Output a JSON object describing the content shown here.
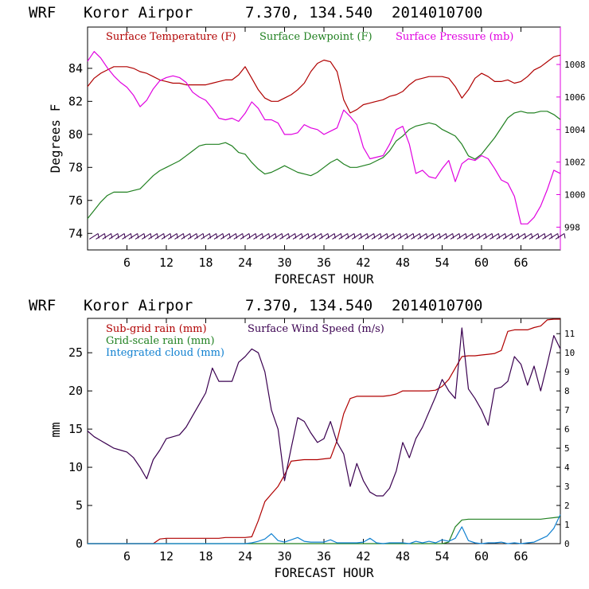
{
  "header": {
    "model": "WRF",
    "station": "Koror Airpor",
    "coords": "7.370, 134.540",
    "init_time": "2014010700"
  },
  "colors": {
    "temperature": "#b00000",
    "dewpoint": "#208020",
    "pressure": "#e000e0",
    "subgrid_rain": "#b00000",
    "grid_rain": "#208020",
    "cloud": "#1080d0",
    "wind_speed": "#3a0050",
    "wind_barbs": "#3a0050"
  },
  "chart_data": [
    {
      "type": "line",
      "title": "WRF   Koror Airpor   7.370, 134.540  2014010700",
      "xlabel": "FORECAST HOUR",
      "ylabel": "Degrees F",
      "y2label": "",
      "xlim": [
        0,
        72
      ],
      "ylim": [
        73.0,
        86.5
      ],
      "y2lim": [
        996.6,
        1010.3
      ],
      "xticks": [
        6,
        12,
        18,
        24,
        30,
        36,
        42,
        48,
        54,
        60,
        66
      ],
      "yticks": [
        74,
        76,
        78,
        80,
        82,
        84
      ],
      "y2ticks": [
        998,
        1000,
        1002,
        1004,
        1006,
        1008
      ],
      "x": [
        0,
        1,
        2,
        3,
        4,
        5,
        6,
        7,
        8,
        9,
        10,
        11,
        12,
        13,
        14,
        15,
        16,
        17,
        18,
        19,
        20,
        21,
        22,
        23,
        24,
        25,
        26,
        27,
        28,
        29,
        30,
        31,
        32,
        33,
        34,
        35,
        36,
        37,
        38,
        39,
        40,
        41,
        42,
        43,
        44,
        45,
        46,
        47,
        48,
        49,
        50,
        51,
        52,
        53,
        54,
        55,
        56,
        57,
        58,
        59,
        60,
        61,
        62,
        63,
        64,
        65,
        66,
        67,
        68,
        69,
        70,
        71,
        72
      ],
      "series": [
        {
          "name": "Surface Temperature (F)",
          "axis": "left",
          "values": [
            82.9,
            83.4,
            83.7,
            83.9,
            84.1,
            84.1,
            84.1,
            84.0,
            83.8,
            83.7,
            83.5,
            83.3,
            83.2,
            83.1,
            83.1,
            83.0,
            83.0,
            83.0,
            83.0,
            83.1,
            83.2,
            83.3,
            83.3,
            83.6,
            84.1,
            83.4,
            82.7,
            82.2,
            82.0,
            82.0,
            82.2,
            82.4,
            82.7,
            83.1,
            83.8,
            84.3,
            84.5,
            84.4,
            83.8,
            82.1,
            81.3,
            81.5,
            81.8,
            81.9,
            82.0,
            82.1,
            82.3,
            82.4,
            82.6,
            83.0,
            83.3,
            83.4,
            83.5,
            83.5,
            83.5,
            83.4,
            82.9,
            82.2,
            82.7,
            83.4,
            83.7,
            83.5,
            83.2,
            83.2,
            83.3,
            83.1,
            83.2,
            83.5,
            83.9,
            84.1,
            84.4,
            84.7,
            84.8
          ]
        },
        {
          "name": "Surface Dewpoint (F)",
          "axis": "left",
          "values": [
            74.9,
            75.4,
            75.9,
            76.3,
            76.5,
            76.5,
            76.5,
            76.6,
            76.7,
            77.1,
            77.5,
            77.8,
            78.0,
            78.2,
            78.4,
            78.7,
            79.0,
            79.3,
            79.4,
            79.4,
            79.4,
            79.5,
            79.3,
            78.9,
            78.8,
            78.3,
            77.9,
            77.6,
            77.7,
            77.9,
            78.1,
            77.9,
            77.7,
            77.6,
            77.5,
            77.7,
            78.0,
            78.3,
            78.5,
            78.2,
            78.0,
            78.0,
            78.1,
            78.2,
            78.4,
            78.6,
            79.0,
            79.6,
            79.9,
            80.3,
            80.5,
            80.6,
            80.7,
            80.6,
            80.3,
            80.1,
            79.9,
            79.4,
            78.7,
            78.5,
            78.8,
            79.3,
            79.8,
            80.4,
            81.0,
            81.3,
            81.4,
            81.3,
            81.3,
            81.4,
            81.4,
            81.2,
            80.9
          ]
        },
        {
          "name": "Surface Pressure (mb)",
          "axis": "right",
          "values": [
            1008.2,
            1008.8,
            1008.4,
            1007.8,
            1007.3,
            1006.9,
            1006.6,
            1006.1,
            1005.4,
            1005.8,
            1006.5,
            1007.0,
            1007.2,
            1007.3,
            1007.2,
            1006.9,
            1006.3,
            1006.0,
            1005.8,
            1005.3,
            1004.7,
            1004.6,
            1004.7,
            1004.5,
            1005.0,
            1005.7,
            1005.3,
            1004.6,
            1004.6,
            1004.4,
            1003.7,
            1003.7,
            1003.8,
            1004.3,
            1004.1,
            1004.0,
            1003.7,
            1003.9,
            1004.1,
            1005.2,
            1004.8,
            1004.3,
            1002.9,
            1002.2,
            1002.3,
            1002.4,
            1003.1,
            1004.0,
            1004.2,
            1003.1,
            1001.3,
            1001.5,
            1001.1,
            1001.0,
            1001.6,
            1002.1,
            1000.8,
            1001.9,
            1002.2,
            1002.1,
            1002.4,
            1002.2,
            1001.6,
            1000.9,
            1000.7,
            999.9,
            998.2,
            998.2,
            998.6,
            999.3,
            1000.3,
            1001.5,
            1001.3
          ]
        }
      ],
      "wind_barbs": {
        "shown": true,
        "count": 72,
        "y_level": 73.8
      }
    },
    {
      "type": "line",
      "title": "WRF   Koror Airpor   7.370, 134.540  2014010700",
      "xlabel": "FORECAST HOUR",
      "ylabel": "mm",
      "xlim": [
        0,
        72
      ],
      "ylim": [
        0,
        29.5
      ],
      "y2lim": [
        0,
        11.8
      ],
      "xticks": [
        6,
        12,
        18,
        24,
        30,
        36,
        42,
        48,
        54,
        60,
        66
      ],
      "yticks": [
        0,
        5,
        10,
        15,
        20,
        25
      ],
      "y2ticks": [
        0,
        1,
        2,
        3,
        4,
        5,
        6,
        7,
        8,
        9,
        10,
        11
      ],
      "x": [
        0,
        1,
        2,
        3,
        4,
        5,
        6,
        7,
        8,
        9,
        10,
        11,
        12,
        13,
        14,
        15,
        16,
        17,
        18,
        19,
        20,
        21,
        22,
        23,
        24,
        25,
        26,
        27,
        28,
        29,
        30,
        31,
        32,
        33,
        34,
        35,
        36,
        37,
        38,
        39,
        40,
        41,
        42,
        43,
        44,
        45,
        46,
        47,
        48,
        49,
        50,
        51,
        52,
        53,
        54,
        55,
        56,
        57,
        58,
        59,
        60,
        61,
        62,
        63,
        64,
        65,
        66,
        67,
        68,
        69,
        70,
        71,
        72
      ],
      "series": [
        {
          "name": "Sub-grid rain (mm)",
          "axis": "left",
          "values": [
            0,
            0,
            0,
            0,
            0,
            0,
            0,
            0,
            0,
            0,
            0,
            0.6,
            0.7,
            0.7,
            0.7,
            0.7,
            0.7,
            0.7,
            0.7,
            0.7,
            0.7,
            0.8,
            0.8,
            0.8,
            0.8,
            0.9,
            3.0,
            5.5,
            6.5,
            7.5,
            9.0,
            10.8,
            10.9,
            11.0,
            11.0,
            11.0,
            11.1,
            11.2,
            13.5,
            17.0,
            19.0,
            19.3,
            19.3,
            19.3,
            19.3,
            19.3,
            19.4,
            19.6,
            20.0,
            20.0,
            20.0,
            20.0,
            20.0,
            20.1,
            20.6,
            21.5,
            23.0,
            24.5,
            24.6,
            24.6,
            24.7,
            24.8,
            24.9,
            25.3,
            27.8,
            28.0,
            28.0,
            28.0,
            28.3,
            28.5,
            29.3,
            29.4,
            29.4
          ]
        },
        {
          "name": "Grid-scale rain (mm)",
          "axis": "left",
          "values": [
            0,
            0,
            0,
            0,
            0,
            0,
            0,
            0,
            0,
            0,
            0,
            0,
            0,
            0,
            0,
            0,
            0,
            0,
            0,
            0,
            0,
            0,
            0,
            0,
            0,
            0,
            0,
            0,
            0,
            0,
            0,
            0,
            0,
            0,
            0,
            0,
            0,
            0,
            0,
            0,
            0,
            0,
            0,
            0,
            0,
            0,
            0,
            0,
            0,
            0,
            0,
            0,
            0,
            0,
            0,
            0.2,
            2.2,
            3.1,
            3.2,
            3.2,
            3.2,
            3.2,
            3.2,
            3.2,
            3.2,
            3.2,
            3.2,
            3.2,
            3.2,
            3.2,
            3.3,
            3.4,
            3.5
          ]
        },
        {
          "name": "Integrated cloud (mm)",
          "axis": "left",
          "values": [
            0,
            0,
            0,
            0,
            0,
            0,
            0,
            0,
            0,
            0,
            0,
            0,
            0,
            0,
            0,
            0,
            0,
            0,
            0,
            0,
            0,
            0,
            0,
            0,
            0,
            0.1,
            0.3,
            0.6,
            1.3,
            0.4,
            0.2,
            0.5,
            0.8,
            0.3,
            0.2,
            0.2,
            0.2,
            0.5,
            0.1,
            0.1,
            0.1,
            0.1,
            0.2,
            0.7,
            0.1,
            0.0,
            0.1,
            0.1,
            0.1,
            0.0,
            0.3,
            0.1,
            0.3,
            0.1,
            0.5,
            0.3,
            0.7,
            2.2,
            0.4,
            0.1,
            0.0,
            0.1,
            0.1,
            0.2,
            0.0,
            0.1,
            0.0,
            0.1,
            0.2,
            0.6,
            1.0,
            2.0,
            3.8
          ]
        },
        {
          "name": "Surface Wind Speed (m/s)",
          "axis": "right",
          "values": [
            5.9,
            5.6,
            5.4,
            5.2,
            5.0,
            4.9,
            4.8,
            4.5,
            4.0,
            3.4,
            4.4,
            4.9,
            5.5,
            5.6,
            5.7,
            6.1,
            6.7,
            7.3,
            7.9,
            9.2,
            8.5,
            8.5,
            8.5,
            9.5,
            9.8,
            10.2,
            10.0,
            9.0,
            7.0,
            6.0,
            3.3,
            5.0,
            6.6,
            6.4,
            5.8,
            5.3,
            5.5,
            6.4,
            5.3,
            4.7,
            3.0,
            4.2,
            3.3,
            2.7,
            2.5,
            2.5,
            2.9,
            3.8,
            5.3,
            4.5,
            5.5,
            6.1,
            6.9,
            7.7,
            8.6,
            8.0,
            7.6,
            11.3,
            8.1,
            7.6,
            7.0,
            6.2,
            8.1,
            8.2,
            8.5,
            9.8,
            9.4,
            8.3,
            9.3,
            8.0,
            9.4,
            10.9,
            10.2
          ]
        }
      ]
    }
  ]
}
